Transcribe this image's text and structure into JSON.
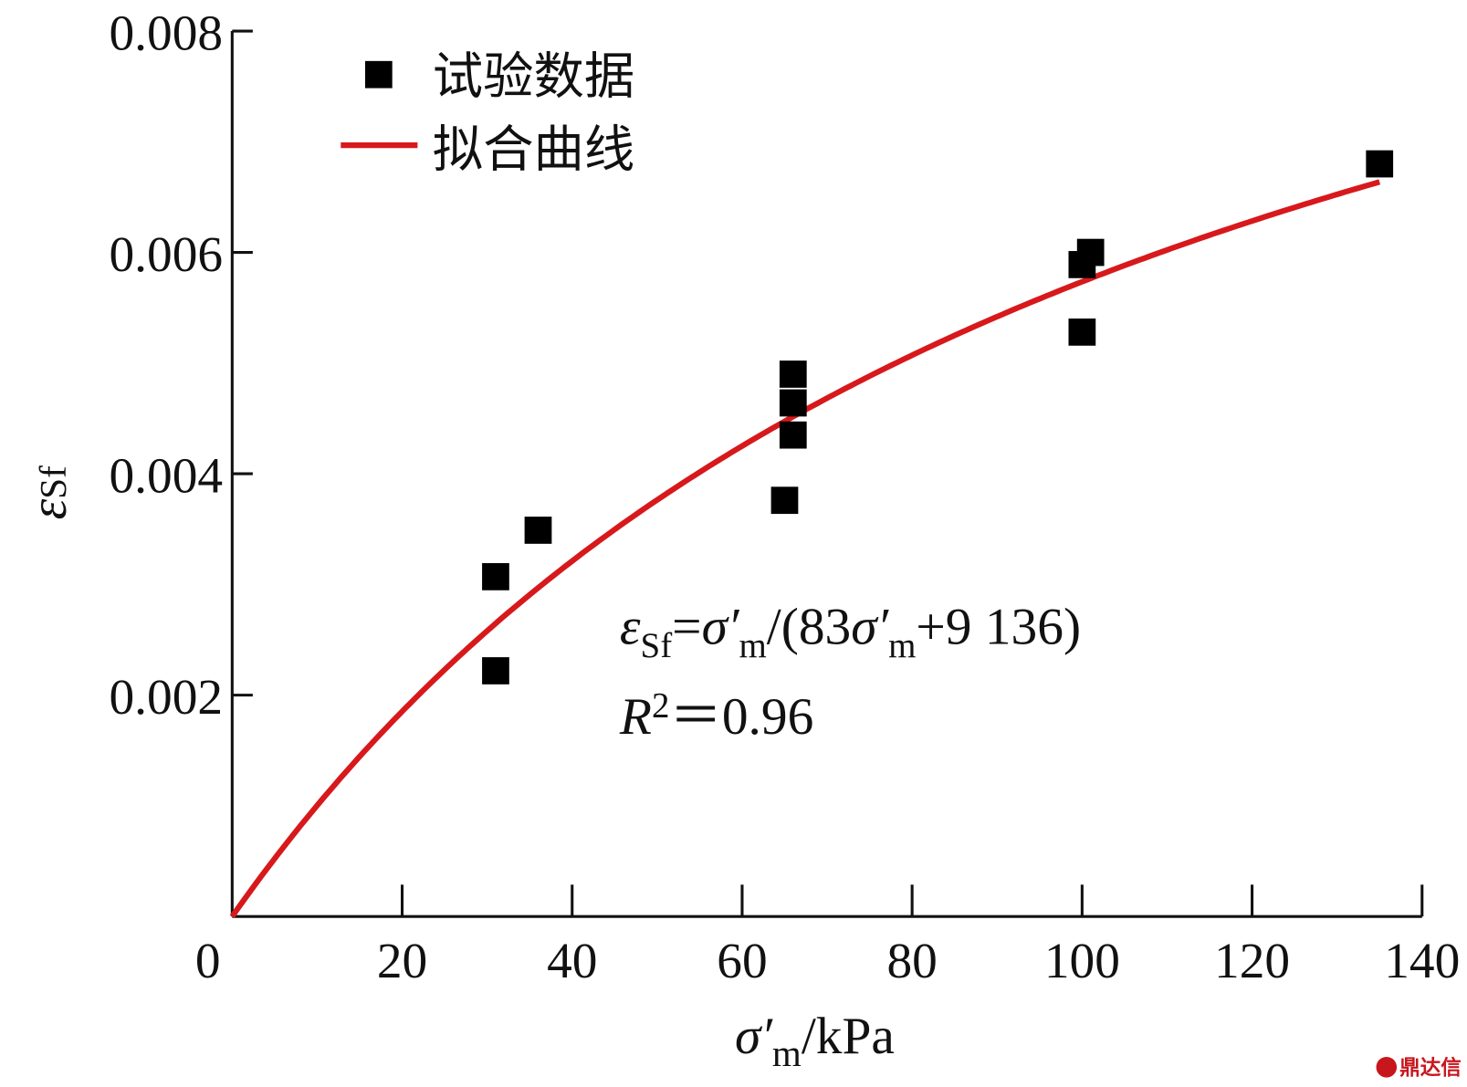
{
  "chart_data": {
    "type": "scatter",
    "xlabel": "σ′m / kPa",
    "xlabel_parts": {
      "symbol": "σ′",
      "sub": "m",
      "unit": "/kPa"
    },
    "ylabel": "εSf",
    "ylabel_parts": {
      "symbol": "ε",
      "sub": "Sf"
    },
    "xlim": [
      0,
      140
    ],
    "ylim": [
      0,
      0.008
    ],
    "xticks": [
      0,
      20,
      40,
      60,
      80,
      100,
      120,
      140
    ],
    "xtick_labels": [
      "0",
      "20",
      "40",
      "60",
      "80",
      "100",
      "120",
      "140"
    ],
    "yticks": [
      0.002,
      0.004,
      0.006,
      0.008
    ],
    "ytick_labels": [
      "0.002",
      "0.004",
      "0.006",
      "0.008"
    ],
    "grid": false,
    "legend_position": "top-left",
    "series": [
      {
        "name": "试验数据",
        "kind": "scatter",
        "marker": "square",
        "color": "#000000",
        "x": [
          31,
          31,
          36,
          65,
          66,
          66,
          66,
          100,
          100,
          101,
          135
        ],
        "y": [
          0.00307,
          0.00222,
          0.00349,
          0.00376,
          0.00435,
          0.00464,
          0.0049,
          0.00528,
          0.00589,
          0.006,
          0.0068
        ]
      },
      {
        "name": "拟合曲线",
        "kind": "line",
        "color": "#d7191c",
        "formula": "εSf = σ′m/(83σ′m + 9136)",
        "a": 83,
        "b": 9136,
        "x_range": [
          0,
          135
        ]
      }
    ],
    "annotations": {
      "equation_parts": {
        "lhs": "ε",
        "lhs_sub": "Sf",
        "eq": "=",
        "s1": "σ′",
        "s1_sub": "m",
        "mid": "/(83",
        "s2": "σ′",
        "s2_sub": "m",
        "tail": "+9 136)"
      },
      "r2_parts": {
        "r": "R",
        "sup": "2",
        "rest": "＝0.96"
      }
    },
    "watermark": "鼎达信"
  }
}
